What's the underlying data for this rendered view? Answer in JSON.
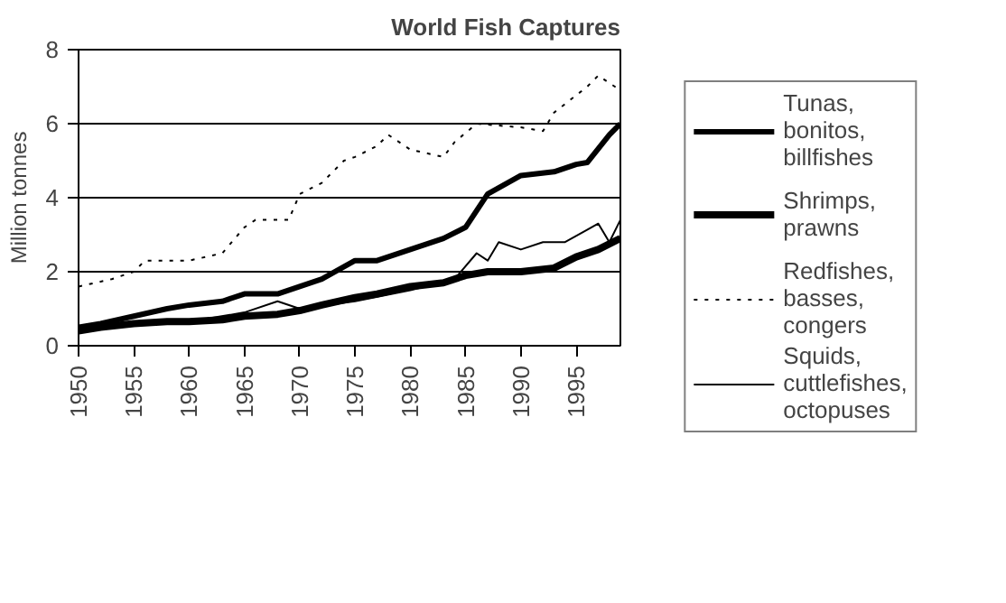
{
  "chart_data": {
    "type": "line",
    "title": "World Fish Captures",
    "ylabel": "Million tonnes",
    "xlim": [
      1950,
      1999
    ],
    "xticks": [
      1950,
      1955,
      1960,
      1965,
      1970,
      1975,
      1980,
      1985,
      1990,
      1995
    ],
    "ylim": [
      0,
      8
    ],
    "yticks": [
      0,
      2,
      4,
      6,
      8
    ],
    "grid": "y",
    "legend": "right",
    "marker": "none",
    "series": [
      {
        "name": "Tunas, bonitos, billfishes",
        "color": "#000000",
        "line_style": "solid",
        "x": [
          1950,
          1952,
          1955,
          1958,
          1960,
          1963,
          1965,
          1968,
          1970,
          1972,
          1975,
          1977,
          1980,
          1983,
          1985,
          1987,
          1990,
          1993,
          1995,
          1996,
          1998,
          1999
        ],
        "values": [
          0.5,
          0.6,
          0.8,
          1.0,
          1.1,
          1.2,
          1.4,
          1.4,
          1.6,
          1.8,
          2.3,
          2.3,
          2.6,
          2.9,
          3.2,
          4.1,
          4.6,
          4.7,
          4.9,
          4.95,
          5.7,
          6.0
        ]
      },
      {
        "name": "Shrimps, prawns",
        "color": "#000000",
        "line_style": "solid",
        "x": [
          1950,
          1952,
          1955,
          1958,
          1960,
          1963,
          1965,
          1968,
          1970,
          1972,
          1975,
          1977,
          1980,
          1983,
          1985,
          1987,
          1990,
          1993,
          1995,
          1997,
          1999
        ],
        "values": [
          0.4,
          0.5,
          0.6,
          0.65,
          0.65,
          0.7,
          0.8,
          0.85,
          0.95,
          1.1,
          1.3,
          1.4,
          1.6,
          1.7,
          1.9,
          2.0,
          2.0,
          2.1,
          2.4,
          2.6,
          2.9
        ]
      },
      {
        "name": "Redfishes, basses, congers",
        "color": "#000000",
        "line_style": "dotted",
        "x": [
          1950,
          1953,
          1955,
          1956,
          1960,
          1963,
          1965,
          1966,
          1969,
          1970,
          1972,
          1974,
          1975,
          1977,
          1978,
          1980,
          1983,
          1984,
          1986,
          1990,
          1992,
          1993,
          1996,
          1997,
          1999
        ],
        "values": [
          1.6,
          1.8,
          2.0,
          2.3,
          2.3,
          2.5,
          3.2,
          3.4,
          3.4,
          4.1,
          4.4,
          5.0,
          5.1,
          5.4,
          5.7,
          5.3,
          5.1,
          5.5,
          6.0,
          5.9,
          5.8,
          6.3,
          7.0,
          7.3,
          6.9
        ]
      },
      {
        "name": "Squids, cuttlefishes, octopuses",
        "color": "#000000",
        "line_style": "solid",
        "x": [
          1950,
          1955,
          1960,
          1965,
          1968,
          1970,
          1975,
          1980,
          1984,
          1986,
          1987,
          1988,
          1990,
          1992,
          1994,
          1997,
          1998,
          1999
        ],
        "values": [
          0.4,
          0.6,
          0.65,
          0.9,
          1.2,
          1.0,
          1.2,
          1.5,
          1.8,
          2.5,
          2.3,
          2.8,
          2.6,
          2.8,
          2.8,
          3.3,
          2.8,
          3.4
        ]
      }
    ]
  }
}
